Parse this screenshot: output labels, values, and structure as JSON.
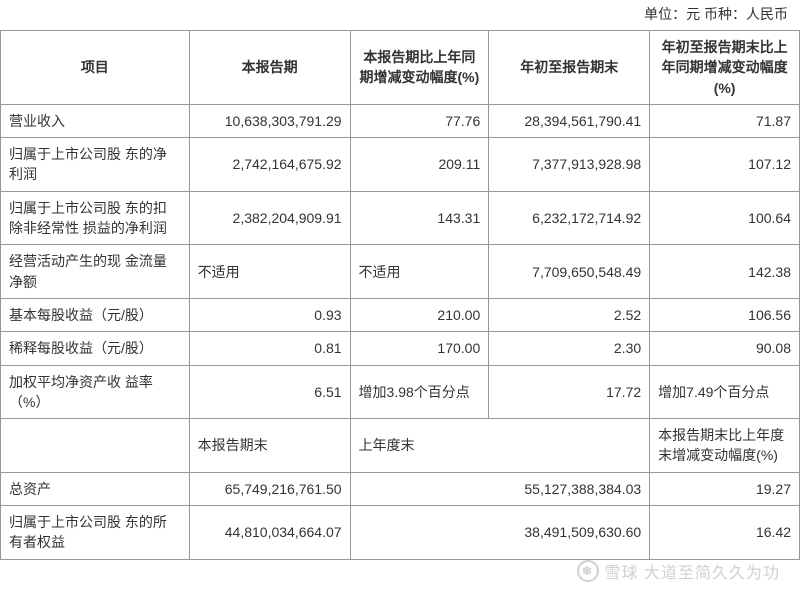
{
  "unit_line": "单位：元  币种：人民币",
  "table": {
    "type": "table",
    "background_color": "#ffffff",
    "border_color": "#999999",
    "text_color": "#333333",
    "font_size": 14,
    "header_font_weight": "bold",
    "columns": [
      {
        "label": "项目",
        "width": 170,
        "align": "center"
      },
      {
        "label": "本报告期",
        "width": 145,
        "align": "center"
      },
      {
        "label": "本报告期比上年同期增减变动幅度(%)",
        "width": 125,
        "align": "center"
      },
      {
        "label": "年初至报告期末",
        "width": 145,
        "align": "center"
      },
      {
        "label": "年初至报告期末比上年同期增减变动幅度(%)",
        "width": 135,
        "align": "center"
      }
    ],
    "rows": [
      {
        "项目": "营业收入",
        "本报告期": "10,638,303,791.29",
        "增减1": "77.76",
        "年初至末": "28,394,561,790.41",
        "增减2": "71.87"
      },
      {
        "项目": "归属于上市公司股 东的净利润",
        "本报告期": "2,742,164,675.92",
        "增减1": "209.11",
        "年初至末": "7,377,913,928.98",
        "增减2": "107.12"
      },
      {
        "项目": "归属于上市公司股 东的扣除非经常性 损益的净利润",
        "本报告期": "2,382,204,909.91",
        "增减1": "143.31",
        "年初至末": "6,232,172,714.92",
        "增减2": "100.64"
      },
      {
        "项目": "经营活动产生的现 金流量净额",
        "本报告期": "不适用",
        "增减1": "不适用",
        "年初至末": "7,709,650,548.49",
        "增减2": "142.38"
      },
      {
        "项目": "基本每股收益（元/股）",
        "本报告期": "0.93",
        "增减1": "210.00",
        "年初至末": "2.52",
        "增减2": "106.56"
      },
      {
        "项目": "稀释每股收益（元/股）",
        "本报告期": "0.81",
        "增减1": "170.00",
        "年初至末": "2.30",
        "增减2": "90.08"
      },
      {
        "项目": "加权平均净资产收 益率（%）",
        "本报告期": "6.51",
        "增减1": "增加3.98个百分点",
        "年初至末": "17.72",
        "增减2": "增加7.49个百分点"
      }
    ],
    "sub_header": {
      "c1": "",
      "c2": "本报告期末",
      "c3": "上年度末",
      "c4": "本报告期末比上年度末增减变动幅度(%)"
    },
    "rows2": [
      {
        "项目": "总资产",
        "期末": "65,749,216,761.50",
        "上年末": "55,127,388,384.03",
        "变动": "19.27"
      },
      {
        "项目": "归属于上市公司股 东的所有者权益",
        "期末": "44,810,034,664.07",
        "上年末": "38,491,509,630.60",
        "变动": "16.42"
      }
    ]
  },
  "watermark": {
    "icon_text": "❄",
    "text": "雪球  大道至简久久为功",
    "color": "rgba(120,120,120,0.35)",
    "font_size": 16
  },
  "aligns": {
    "na_left": true
  }
}
